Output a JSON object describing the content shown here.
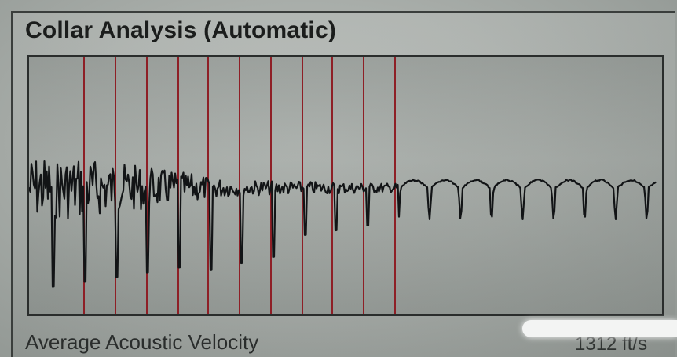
{
  "header": {
    "title": "Collar Analysis (Automatic)"
  },
  "footer": {
    "label": "Average Acoustic Velocity",
    "value": "1312 ft/s"
  },
  "colors": {
    "marker": "#8e1f26",
    "trace": "#121416",
    "frame": "#2a2d2c"
  }
}
